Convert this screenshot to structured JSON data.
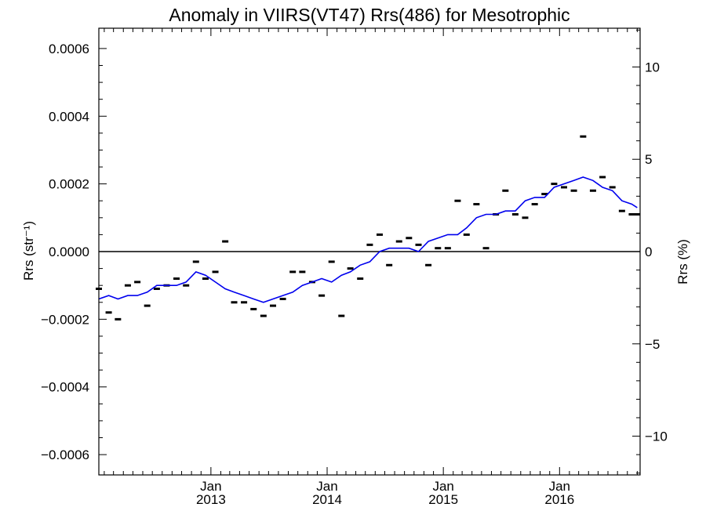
{
  "chart_data": {
    "type": "line",
    "title": "Anomaly in VIIRS(VT47) Rrs(486) for Mesotrophic",
    "ylabel_left": "Rrs (str⁻¹)",
    "ylabel_right": "Rrs (%)",
    "xlabel": "",
    "x_ticks": [
      {
        "date": "2013-01-01",
        "month": "Jan",
        "year": "2013"
      },
      {
        "date": "2014-01-01",
        "month": "Jan",
        "year": "2014"
      },
      {
        "date": "2015-01-01",
        "month": "Jan",
        "year": "2015"
      },
      {
        "date": "2016-01-01",
        "month": "Jan",
        "year": "2016"
      }
    ],
    "xlim": [
      "2012-01-15",
      "2016-09-10"
    ],
    "ylim_left": [
      -0.00066,
      0.00066
    ],
    "ylim_right": [
      -12.1,
      12.1
    ],
    "left_ticks": [
      {
        "value": -0.0006,
        "label": "−0.0006"
      },
      {
        "value": -0.0004,
        "label": "−0.0004"
      },
      {
        "value": -0.0002,
        "label": "−0.0002"
      },
      {
        "value": 0,
        "label": "0.0000"
      },
      {
        "value": 0.0002,
        "label": "0.0002"
      },
      {
        "value": 0.0004,
        "label": "0.0004"
      },
      {
        "value": 0.0006,
        "label": "0.0006"
      }
    ],
    "right_ticks": [
      {
        "value": -10,
        "label": "−10"
      },
      {
        "value": -5,
        "label": "−5"
      },
      {
        "value": 0,
        "label": "0"
      },
      {
        "value": 5,
        "label": "5"
      },
      {
        "value": 10,
        "label": "10"
      }
    ],
    "zero_line": true,
    "grid": false,
    "series": [
      {
        "kind": "dash-markers",
        "color": "#000000",
        "x": [
          "2012-01-15",
          "2012-02-15",
          "2012-03-15",
          "2012-04-15",
          "2012-05-15",
          "2012-06-15",
          "2012-07-15",
          "2012-08-15",
          "2012-09-15",
          "2012-10-15",
          "2012-11-15",
          "2012-12-15",
          "2013-01-15",
          "2013-02-15",
          "2013-03-15",
          "2013-04-15",
          "2013-05-15",
          "2013-06-15",
          "2013-07-15",
          "2013-08-15",
          "2013-09-15",
          "2013-10-15",
          "2013-11-15",
          "2013-12-15",
          "2014-01-15",
          "2014-02-15",
          "2014-03-15",
          "2014-04-15",
          "2014-05-15",
          "2014-06-15",
          "2014-07-15",
          "2014-08-15",
          "2014-09-15",
          "2014-10-15",
          "2014-11-15",
          "2014-12-15",
          "2015-01-15",
          "2015-02-15",
          "2015-03-15",
          "2015-04-15",
          "2015-05-15",
          "2015-06-15",
          "2015-07-15",
          "2015-08-15",
          "2015-09-15",
          "2015-10-15",
          "2015-11-15",
          "2015-12-15",
          "2016-01-15",
          "2016-02-15",
          "2016-03-15",
          "2016-04-15",
          "2016-05-15",
          "2016-06-15",
          "2016-07-15",
          "2016-08-15",
          "2016-09-01"
        ],
        "y": [
          -0.00011,
          -0.00018,
          -0.0002,
          -0.0001,
          -9e-05,
          -0.00016,
          -0.00011,
          -0.0001,
          -8e-05,
          -0.0001,
          -3e-05,
          -8e-05,
          -6e-05,
          3e-05,
          -0.00015,
          -0.00015,
          -0.00017,
          -0.00019,
          -0.00016,
          -0.00014,
          -6e-05,
          -6e-05,
          -9e-05,
          -0.00013,
          -3e-05,
          -0.00019,
          -5e-05,
          -8e-05,
          2e-05,
          5e-05,
          -4e-05,
          3e-05,
          4e-05,
          2e-05,
          -4e-05,
          1e-05,
          1e-05,
          0.00015,
          5e-05,
          0.00014,
          1e-05,
          0.00011,
          0.00018,
          0.00011,
          0.0001,
          0.00014,
          0.00017,
          0.0002,
          0.00019,
          0.00018,
          0.00034,
          0.00018,
          0.00022,
          0.00019,
          0.00012,
          0.00011,
          0.00011
        ]
      },
      {
        "kind": "line",
        "color": "#0000ee",
        "x": [
          "2012-01-15",
          "2012-02-15",
          "2012-03-15",
          "2012-04-15",
          "2012-05-15",
          "2012-06-15",
          "2012-07-15",
          "2012-08-15",
          "2012-09-15",
          "2012-10-15",
          "2012-11-15",
          "2012-12-15",
          "2013-01-15",
          "2013-02-15",
          "2013-03-15",
          "2013-04-15",
          "2013-05-15",
          "2013-06-15",
          "2013-07-15",
          "2013-08-15",
          "2013-09-15",
          "2013-10-15",
          "2013-11-15",
          "2013-12-15",
          "2014-01-15",
          "2014-02-15",
          "2014-03-15",
          "2014-04-15",
          "2014-05-15",
          "2014-06-15",
          "2014-07-15",
          "2014-08-15",
          "2014-09-15",
          "2014-10-15",
          "2014-11-15",
          "2014-12-15",
          "2015-01-15",
          "2015-02-15",
          "2015-03-15",
          "2015-04-15",
          "2015-05-15",
          "2015-06-15",
          "2015-07-15",
          "2015-08-15",
          "2015-09-15",
          "2015-10-15",
          "2015-11-15",
          "2015-12-15",
          "2016-01-15",
          "2016-02-15",
          "2016-03-15",
          "2016-04-15",
          "2016-05-15",
          "2016-06-15",
          "2016-07-15",
          "2016-08-15",
          "2016-09-01"
        ],
        "y": [
          -0.00014,
          -0.00013,
          -0.00014,
          -0.00013,
          -0.00013,
          -0.00012,
          -0.0001,
          -0.0001,
          -0.0001,
          -9e-05,
          -6e-05,
          -7e-05,
          -9e-05,
          -0.00011,
          -0.00012,
          -0.00013,
          -0.00014,
          -0.00015,
          -0.00014,
          -0.00013,
          -0.00012,
          -0.0001,
          -9e-05,
          -8e-05,
          -9e-05,
          -7e-05,
          -6e-05,
          -4e-05,
          -3e-05,
          0,
          1e-05,
          1e-05,
          1e-05,
          0,
          3e-05,
          4e-05,
          5e-05,
          5e-05,
          7e-05,
          0.0001,
          0.00011,
          0.00011,
          0.00012,
          0.00012,
          0.00015,
          0.00016,
          0.00016,
          0.00019,
          0.0002,
          0.00021,
          0.00022,
          0.00021,
          0.00019,
          0.00018,
          0.00015,
          0.00014,
          0.00013
        ]
      }
    ]
  }
}
